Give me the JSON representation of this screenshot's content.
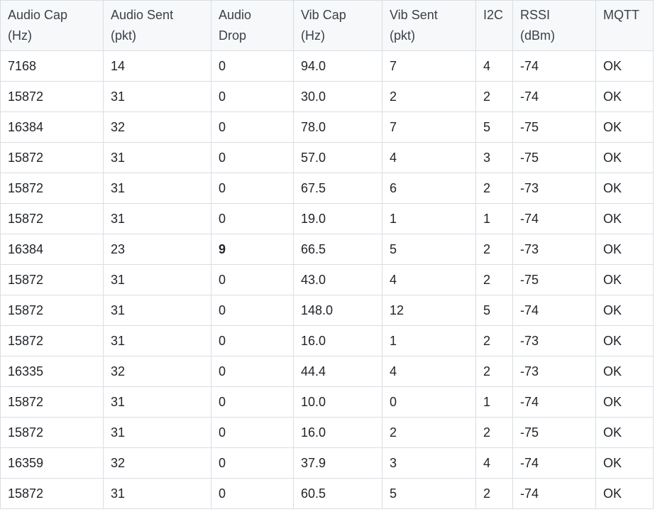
{
  "table": {
    "header": [
      "Audio Cap\n(Hz)",
      "Audio Sent\n(pkt)",
      "Audio\nDrop",
      "Vib Cap\n(Hz)",
      "Vib Sent\n(pkt)",
      "I2C",
      "RSSI\n(dBm)",
      "MQTT"
    ],
    "rows": [
      [
        "7168",
        "14",
        "0",
        "94.0",
        "7",
        "4",
        "-74",
        "OK"
      ],
      [
        "15872",
        "31",
        "0",
        "30.0",
        "2",
        "2",
        "-74",
        "OK"
      ],
      [
        "16384",
        "32",
        "0",
        "78.0",
        "7",
        "5",
        "-75",
        "OK"
      ],
      [
        "15872",
        "31",
        "0",
        "57.0",
        "4",
        "3",
        "-75",
        "OK"
      ],
      [
        "15872",
        "31",
        "0",
        "67.5",
        "6",
        "2",
        "-73",
        "OK"
      ],
      [
        "15872",
        "31",
        "0",
        "19.0",
        "1",
        "1",
        "-74",
        "OK"
      ],
      [
        "16384",
        "23",
        "9",
        "66.5",
        "5",
        "2",
        "-73",
        "OK"
      ],
      [
        "15872",
        "31",
        "0",
        "43.0",
        "4",
        "2",
        "-75",
        "OK"
      ],
      [
        "15872",
        "31",
        "0",
        "148.0",
        "12",
        "5",
        "-74",
        "OK"
      ],
      [
        "15872",
        "31",
        "0",
        "16.0",
        "1",
        "2",
        "-73",
        "OK"
      ],
      [
        "16335",
        "32",
        "0",
        "44.4",
        "4",
        "2",
        "-73",
        "OK"
      ],
      [
        "15872",
        "31",
        "0",
        "10.0",
        "0",
        "1",
        "-74",
        "OK"
      ],
      [
        "15872",
        "31",
        "0",
        "16.0",
        "2",
        "2",
        "-75",
        "OK"
      ],
      [
        "16359",
        "32",
        "0",
        "37.9",
        "3",
        "4",
        "-74",
        "OK"
      ],
      [
        "15872",
        "31",
        "0",
        "60.5",
        "5",
        "2",
        "-74",
        "OK"
      ]
    ]
  }
}
